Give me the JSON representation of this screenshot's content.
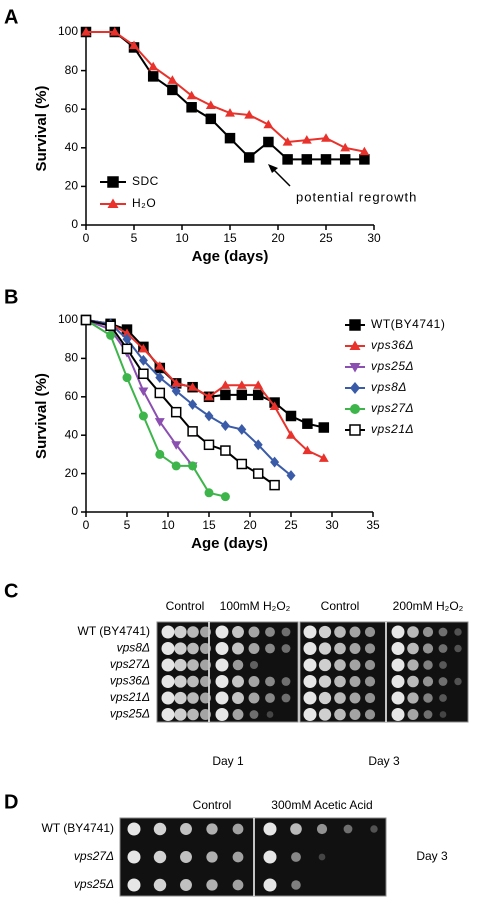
{
  "chart_data": [
    {
      "type": "line",
      "panel": "A",
      "xlabel": "Age (days)",
      "ylabel": "Survival (%)",
      "xlim": [
        0,
        30
      ],
      "xticks": [
        0,
        5,
        10,
        15,
        20,
        25,
        30
      ],
      "ylim": [
        0,
        100
      ],
      "yticks": [
        0,
        20,
        40,
        60,
        80,
        100
      ],
      "annotation": "potential regrowth",
      "series": [
        {
          "name": "SDC",
          "color": "#000000",
          "marker": "square",
          "x": [
            0,
            3,
            5,
            7,
            9,
            11,
            13,
            15,
            17,
            19,
            21,
            23,
            25,
            27,
            29
          ],
          "values": [
            100,
            100,
            92,
            77,
            70,
            61,
            55,
            45,
            35,
            43,
            34,
            34,
            34,
            34,
            34
          ]
        },
        {
          "name": "H₂O",
          "color": "#e8322b",
          "marker": "triangle",
          "x": [
            0,
            3,
            5,
            7,
            9,
            11,
            13,
            15,
            17,
            19,
            21,
            23,
            25,
            27,
            29
          ],
          "values": [
            100,
            100,
            93,
            82,
            75,
            67,
            62,
            58,
            57,
            52,
            43,
            44,
            45,
            40,
            38
          ]
        }
      ]
    },
    {
      "type": "line",
      "panel": "B",
      "xlabel": "Age (days)",
      "ylabel": "Survival (%)",
      "xlim": [
        0,
        35
      ],
      "xticks": [
        0,
        5,
        10,
        15,
        20,
        25,
        30,
        35
      ],
      "ylim": [
        0,
        100
      ],
      "yticks": [
        0,
        20,
        40,
        60,
        80,
        100
      ],
      "series": [
        {
          "name": "WT(BY4741)",
          "color": "#000000",
          "marker": "square",
          "x": [
            0,
            3,
            5,
            7,
            9,
            11,
            13,
            15,
            17,
            19,
            21,
            23,
            25,
            27,
            29
          ],
          "values": [
            100,
            98,
            95,
            86,
            75,
            67,
            65,
            60,
            61,
            61,
            61,
            57,
            50,
            46,
            44
          ]
        },
        {
          "name": "vps36Δ",
          "color": "#e8322b",
          "marker": "triangle",
          "x": [
            0,
            3,
            5,
            7,
            9,
            11,
            13,
            15,
            17,
            19,
            21,
            23,
            25,
            27,
            29
          ],
          "values": [
            100,
            98,
            93,
            85,
            76,
            67,
            65,
            60,
            66,
            66,
            66,
            55,
            40,
            32,
            28
          ]
        },
        {
          "name": "vps25Δ",
          "color": "#8a4fb0",
          "marker": "triangle-down",
          "x": [
            0,
            3,
            5,
            7,
            9,
            11,
            13
          ],
          "values": [
            100,
            95,
            83,
            63,
            47,
            35,
            24
          ]
        },
        {
          "name": "vps8Δ",
          "color": "#3a5ba8",
          "marker": "diamond",
          "x": [
            0,
            3,
            5,
            7,
            9,
            11,
            13,
            15,
            17,
            19,
            21,
            23,
            25
          ],
          "values": [
            100,
            98,
            90,
            79,
            70,
            63,
            56,
            50,
            45,
            43,
            35,
            26,
            19
          ]
        },
        {
          "name": "vps27Δ",
          "color": "#3db54a",
          "marker": "circle",
          "x": [
            0,
            3,
            5,
            7,
            9,
            11,
            13,
            15,
            17
          ],
          "values": [
            100,
            92,
            70,
            50,
            30,
            24,
            24,
            10,
            8
          ]
        },
        {
          "name": "vps21Δ",
          "color": "#000000",
          "marker": "open-square",
          "x": [
            0,
            3,
            5,
            7,
            9,
            11,
            13,
            15,
            17,
            19,
            21,
            23
          ],
          "values": [
            100,
            97,
            85,
            72,
            62,
            52,
            42,
            35,
            32,
            25,
            20,
            14
          ]
        }
      ]
    }
  ],
  "spot_assays": [
    {
      "panel": "C",
      "columns": [
        "Control",
        "100mM H₂O₂",
        "Control",
        "200mM H₂O₂"
      ],
      "rows": [
        "WT (BY4741)",
        "vps8Δ",
        "vps27Δ",
        "vps36Δ",
        "vps21Δ",
        "vps25Δ"
      ],
      "days": [
        "Day 1",
        "Day 3"
      ]
    },
    {
      "panel": "D",
      "columns": [
        "Control",
        "300mM Acetic Acid"
      ],
      "rows": [
        "WT (BY4741)",
        "vps27Δ",
        "vps25Δ"
      ],
      "days": [
        "Day 3"
      ]
    }
  ]
}
